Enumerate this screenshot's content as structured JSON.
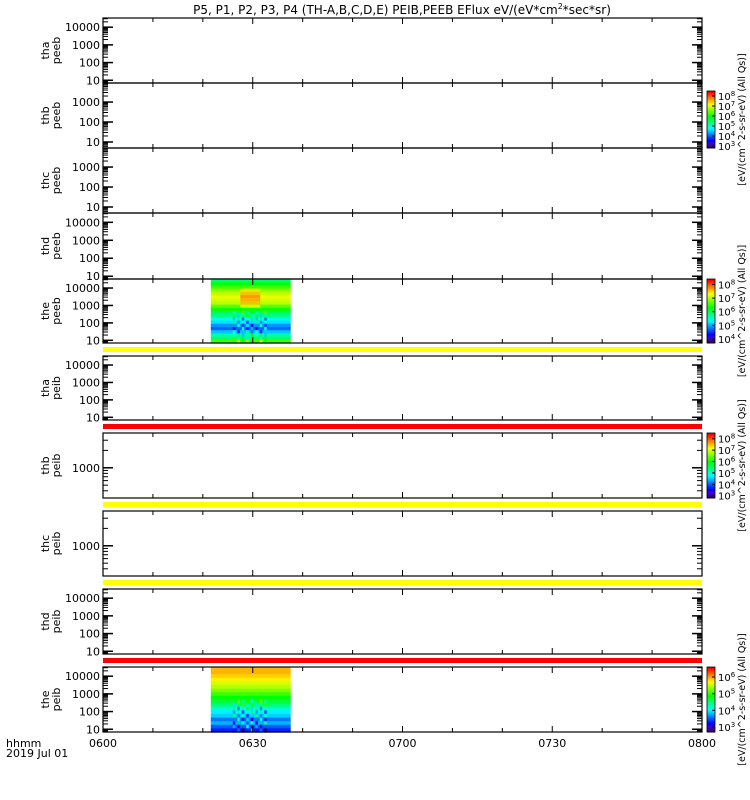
{
  "title": {
    "main": "P5, P1, P2, P3, P4 (TH-A,B,C,D,E) PEIB,PEEB EFlux eV/(eV*cm",
    "sup": "2",
    "tail": "*sec*sr)"
  },
  "x_axis": {
    "unit_label": "hhmm",
    "date_label": "2019 Jul 01",
    "ticks": [
      "0600",
      "0630",
      "0700",
      "0730",
      "0800"
    ],
    "range_min": [
      0,
      120
    ],
    "minor_step_min": 10
  },
  "colors": {
    "flag_yellow": "#ffff00",
    "flag_red": "#ff0000",
    "axis": "#000000"
  },
  "flag_bars": [
    {
      "after_panel": 4,
      "color": "#ffff00"
    },
    {
      "after_panel": 5,
      "color": "#ff0000"
    },
    {
      "after_panel": 6,
      "color": "#ffff00"
    },
    {
      "after_panel": 7,
      "color": "#ffff00"
    },
    {
      "after_panel": 8,
      "color": "#ff0000"
    }
  ],
  "colorbars": [
    {
      "panel": 1,
      "range_log": [
        2.8,
        8.5
      ],
      "labels": [
        "10^3",
        "10^4",
        "10^5",
        "10^6",
        "10^7",
        "10^8"
      ],
      "title": "[eV/(cm^2-s-sr-eV) (All Qs)]"
    },
    {
      "panel": 4,
      "range_log": [
        3.7,
        8.4
      ],
      "labels": [
        "10^4",
        "10^5",
        "10^6",
        "10^7",
        "10^8"
      ],
      "title": "[eV/(cm^2-s-sr-eV) (All Qs)]"
    },
    {
      "panel": 6,
      "range_log": [
        2.8,
        8.5
      ],
      "labels": [
        "10^3",
        "10^4",
        "10^5",
        "10^6",
        "10^7",
        "10^8"
      ],
      "title": "[eV/(cm^2-s-sr-eV) (All Qs)]"
    },
    {
      "panel": 9,
      "range_log": [
        2.7,
        6.6
      ],
      "labels": [
        "10^3",
        "10^4",
        "10^5",
        "10^6"
      ],
      "title": "[eV/(cm^2-s-sr-eV) (All Qs)]"
    }
  ],
  "chart_data": [
    {
      "type": "heatmap",
      "probe": "tha",
      "product": "peeb",
      "ylim": [
        7,
        33000
      ],
      "ytick_labels": [
        "10000",
        "1000",
        "100",
        "10"
      ]
    },
    {
      "type": "heatmap",
      "probe": "thb",
      "product": "peeb",
      "ylim": [
        5,
        9000
      ],
      "ytick_labels": [
        "1000",
        "100",
        "10"
      ]
    },
    {
      "type": "heatmap",
      "probe": "thc",
      "product": "peeb",
      "ylim": [
        5,
        9000
      ],
      "ytick_labels": [
        "1000",
        "100",
        "10"
      ]
    },
    {
      "type": "heatmap",
      "probe": "thd",
      "product": "peeb",
      "ylim": [
        7,
        33000
      ],
      "ytick_labels": [
        "10000",
        "1000",
        "100",
        "10"
      ]
    },
    {
      "type": "heatmap",
      "probe": "the",
      "product": "peeb",
      "ylim": [
        7,
        33000
      ],
      "ytick_labels": [
        "10000",
        "1000",
        "100",
        "10"
      ],
      "data_time_min": [
        21.6,
        37.6
      ],
      "flux_log_profile_top_to_bottom": [
        5.9,
        6.3,
        6.6,
        6.9,
        7.1,
        7.3,
        7.2,
        7.1,
        6.7,
        6.4,
        6.0,
        5.8,
        5.4,
        5.2,
        4.9,
        4.7,
        5.1,
        5.7,
        5.9,
        6.6
      ]
    },
    {
      "type": "heatmap",
      "probe": "tha",
      "product": "peib",
      "ylim": [
        7,
        33000
      ],
      "ytick_labels": [
        "10000",
        "1000",
        "100",
        "10"
      ]
    },
    {
      "type": "heatmap",
      "probe": "thb",
      "product": "peib",
      "ylim": [
        300,
        4000
      ],
      "ytick_labels": [
        "1000"
      ]
    },
    {
      "type": "heatmap",
      "probe": "thc",
      "product": "peib",
      "ylim": [
        300,
        4000
      ],
      "ytick_labels": [
        "1000"
      ]
    },
    {
      "type": "heatmap",
      "probe": "thd",
      "product": "peib",
      "ylim": [
        7,
        33000
      ],
      "ytick_labels": [
        "10000",
        "1000",
        "100",
        "10"
      ]
    },
    {
      "type": "heatmap",
      "probe": "the",
      "product": "peib",
      "ylim": [
        7,
        33000
      ],
      "ytick_labels": [
        "10000",
        "1000",
        "100",
        "10"
      ],
      "data_time_min": [
        21.6,
        37.6
      ],
      "flux_log_profile_top_to_bottom": [
        6.0,
        6.0,
        5.9,
        5.8,
        5.6,
        5.5,
        5.3,
        5.1,
        4.9,
        4.7,
        4.5,
        4.2,
        4.0,
        3.9,
        3.6,
        3.8,
        3.5,
        3.3
      ]
    }
  ]
}
